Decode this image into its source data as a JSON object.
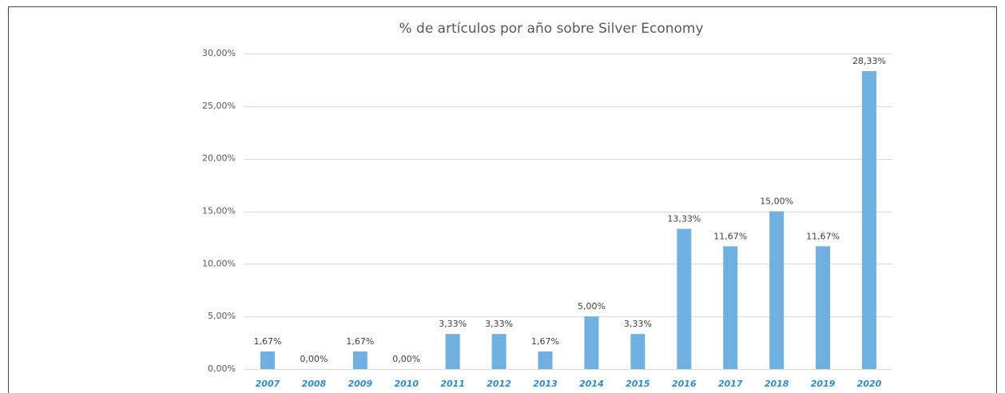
{
  "chart_data": {
    "type": "bar",
    "title": "% de artículos por año sobre Silver Economy",
    "categories": [
      "2007",
      "2008",
      "2009",
      "2010",
      "2011",
      "2012",
      "2013",
      "2014",
      "2015",
      "2016",
      "2017",
      "2018",
      "2019",
      "2020"
    ],
    "values": [
      1.67,
      0,
      1.67,
      0,
      3.33,
      3.33,
      1.67,
      5,
      3.33,
      13.33,
      11.67,
      15,
      11.67,
      28.33
    ],
    "value_labels": [
      "1,67%",
      "0,00%",
      "1,67%",
      "0,00%",
      "3,33%",
      "3,33%",
      "1,67%",
      "5,00%",
      "3,33%",
      "13,33%",
      "11,67%",
      "15,00%",
      "11,67%",
      "28,33%"
    ],
    "color": "#6fb0e0",
    "ylim": [
      0,
      30
    ],
    "yticks": [
      {
        "value": 0,
        "label": "0,00%"
      },
      {
        "value": 5,
        "label": "5,00%"
      },
      {
        "value": 10,
        "label": "10,00%"
      },
      {
        "value": 15,
        "label": "15,00%"
      },
      {
        "value": 20,
        "label": "20,00%"
      },
      {
        "value": 25,
        "label": "25,00%"
      },
      {
        "value": 30,
        "label": "30,00%"
      }
    ],
    "grid": true
  }
}
